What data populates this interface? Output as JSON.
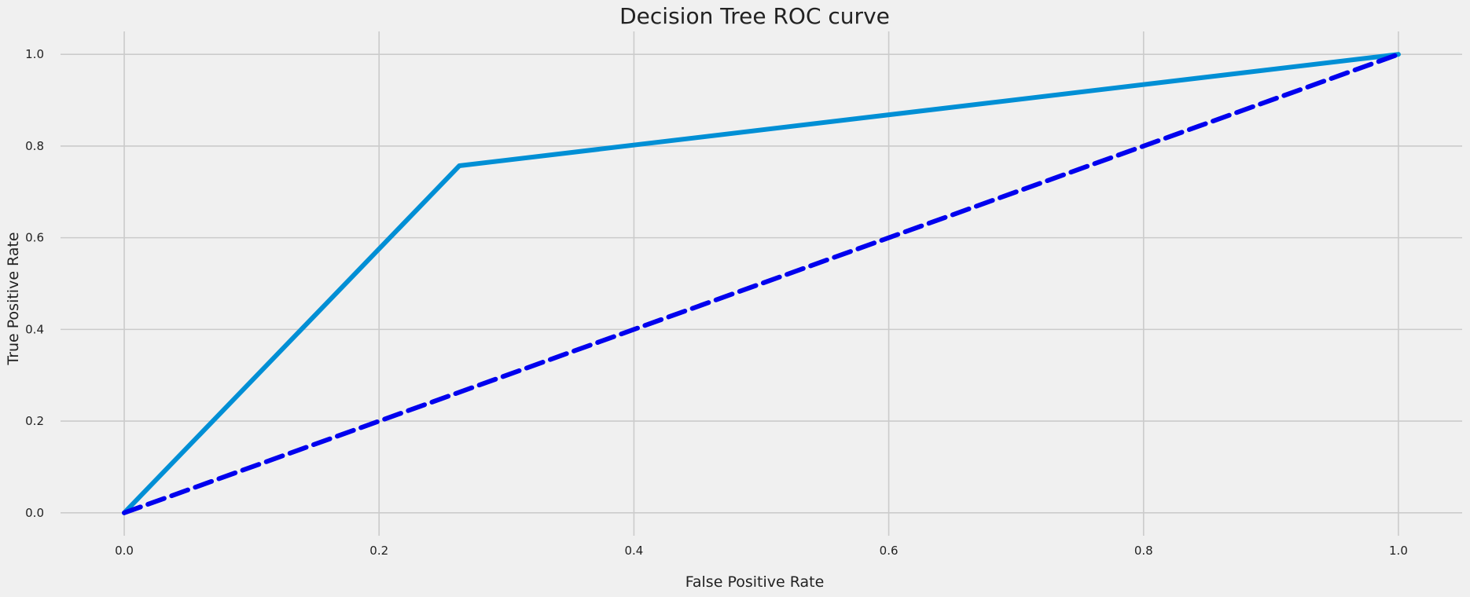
{
  "chart_data": {
    "type": "line",
    "title": "Decision Tree ROC curve",
    "xlabel": "False Positive Rate",
    "ylabel": "True Positive Rate",
    "xlim": [
      -0.05,
      1.05
    ],
    "ylim": [
      -0.05,
      1.05
    ],
    "xticks": [
      0.0,
      0.2,
      0.4,
      0.6,
      0.8,
      1.0
    ],
    "xtick_labels": [
      "0.0",
      "0.2",
      "0.4",
      "0.6",
      "0.8",
      "1.0"
    ],
    "yticks": [
      0.0,
      0.2,
      0.4,
      0.6,
      0.8,
      1.0
    ],
    "ytick_labels": [
      "0.0",
      "0.2",
      "0.4",
      "0.6",
      "0.8",
      "1.0"
    ],
    "grid": true,
    "series": [
      {
        "x": [
          0.0,
          0.263,
          1.0
        ],
        "y": [
          0.0,
          0.757,
          1.0
        ],
        "color": "#008fd5",
        "style": "solid"
      },
      {
        "x": [
          0.0,
          1.0
        ],
        "y": [
          0.0,
          1.0
        ],
        "color": "#0000ee",
        "style": "dashed"
      }
    ]
  }
}
